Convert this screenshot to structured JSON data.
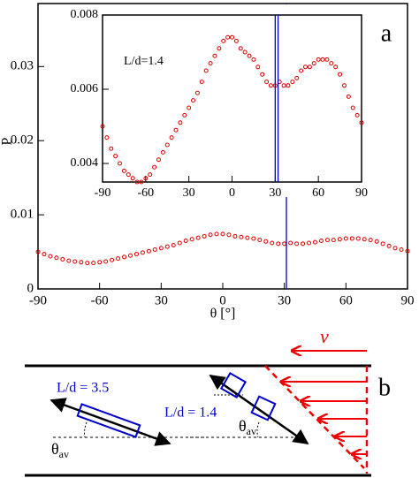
{
  "chart_data": [
    {
      "type": "scatter",
      "label": "a",
      "xlabel": "θ [°]",
      "ylabel": "P",
      "x": [
        -90,
        -87,
        -84,
        -81,
        -78,
        -75,
        -72,
        -69,
        -66,
        -63,
        -60,
        -57,
        -54,
        -51,
        -48,
        -45,
        -42,
        -39,
        -36,
        -33,
        -30,
        -27,
        -24,
        -21,
        -18,
        -15,
        -12,
        -9,
        -6,
        -3,
        0,
        3,
        6,
        9,
        12,
        15,
        18,
        21,
        24,
        27,
        30,
        33,
        36,
        39,
        42,
        45,
        48,
        51,
        54,
        57,
        60,
        63,
        66,
        69,
        72,
        75,
        78,
        81,
        84,
        87,
        90
      ],
      "values": [
        0.005,
        0.0047,
        0.0044,
        0.0042,
        0.004,
        0.0038,
        0.0037,
        0.0036,
        0.0035,
        0.0035,
        0.0036,
        0.0037,
        0.0039,
        0.0041,
        0.0043,
        0.0045,
        0.0047,
        0.0049,
        0.0051,
        0.0053,
        0.0055,
        0.0057,
        0.0059,
        0.0062,
        0.0065,
        0.0067,
        0.0069,
        0.0071,
        0.0073,
        0.0074,
        0.0074,
        0.0073,
        0.0071,
        0.007,
        0.0069,
        0.0068,
        0.0066,
        0.0064,
        0.0062,
        0.0061,
        0.0061,
        0.0062,
        0.0061,
        0.0061,
        0.0062,
        0.0063,
        0.0065,
        0.0066,
        0.0066,
        0.0067,
        0.0068,
        0.0068,
        0.0068,
        0.0067,
        0.0066,
        0.0064,
        0.0061,
        0.0058,
        0.0055,
        0.0053,
        0.0051
      ],
      "color": "#dd0000",
      "xlim": [
        -90,
        90
      ],
      "ylim": [
        0,
        0.0385
      ],
      "xticks": [
        -90,
        -60,
        {
          "value": -30,
          "label": "30"
        },
        0,
        30,
        60,
        90
      ],
      "yticks": [
        0,
        0.01,
        0.02,
        0.03
      ],
      "vlines": [
        31
      ],
      "vline_color": "#0000cc"
    },
    {
      "type": "inset",
      "annotation": "L/d=1.4",
      "xlim": [
        -90,
        90
      ],
      "ylim": [
        0.0035,
        0.008
      ],
      "xticks": [
        -90,
        -60,
        {
          "value": -30,
          "label": "30"
        },
        0,
        30,
        60,
        90
      ],
      "yticks": [
        0.004,
        0.006,
        0.008
      ],
      "vlines": [
        30,
        32
      ],
      "vline_color": "#0000cc"
    }
  ],
  "diagram": {
    "label": "b",
    "velocity": "v",
    "rods": [
      {
        "label": "L/d = 3.5",
        "angle": "θ",
        "angle_sub": "av"
      },
      {
        "label": "L/d = 1.4",
        "angle": "θ",
        "angle_sub": "av"
      }
    ]
  }
}
